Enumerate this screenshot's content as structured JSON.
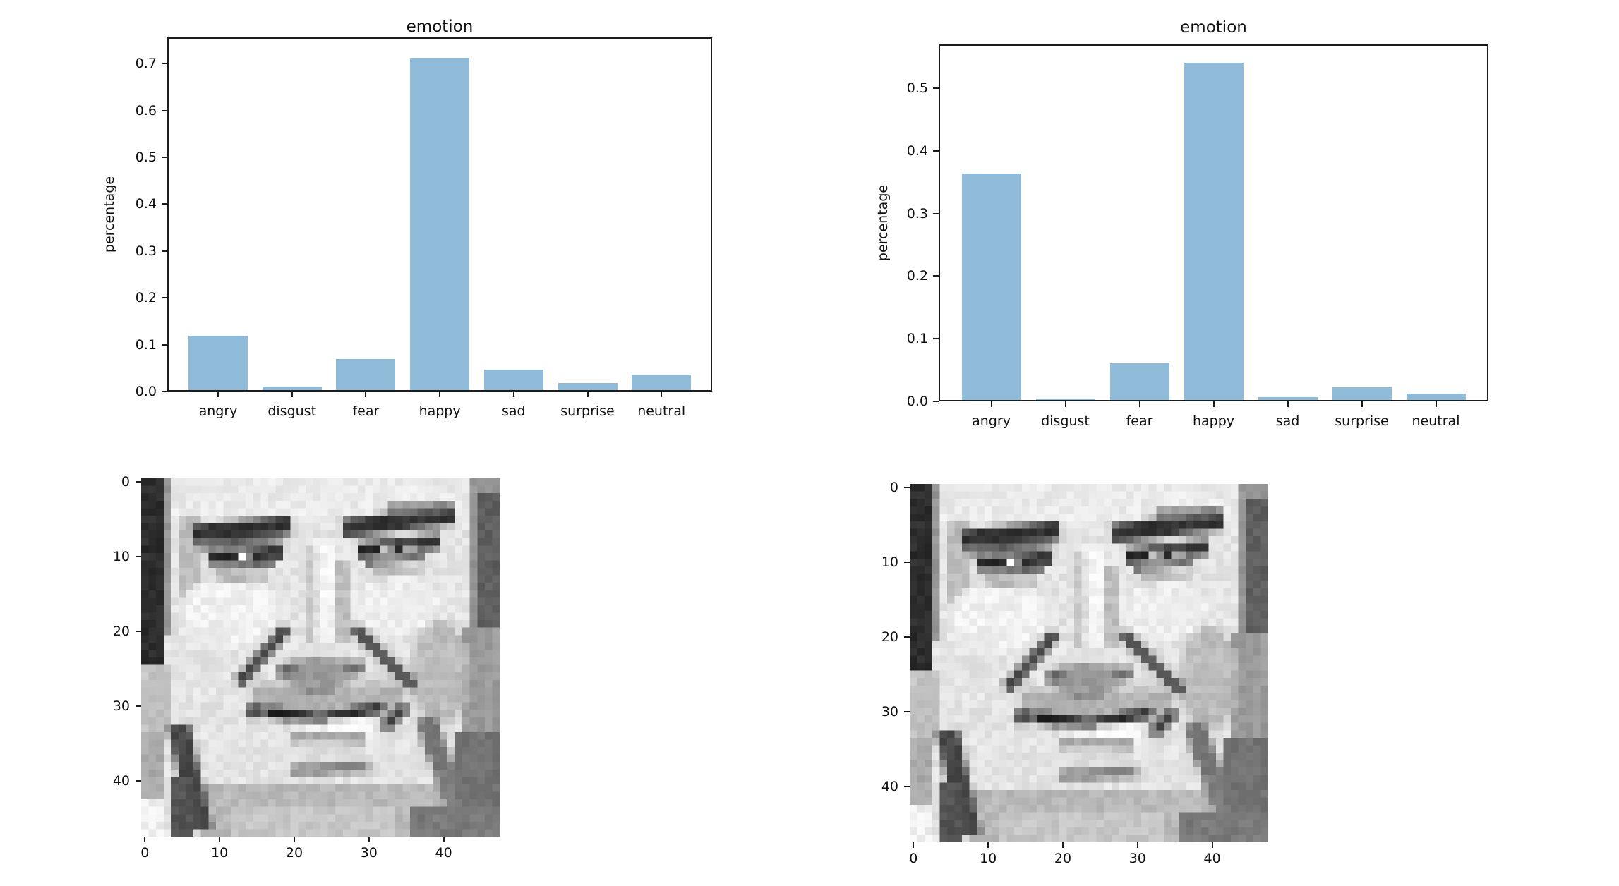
{
  "figure": {
    "background": "#ffffff",
    "bar_color": "#8fbbd9",
    "spine_color": "#1c1c1c",
    "text_color": "#111111"
  },
  "chart_data": [
    {
      "type": "bar",
      "title": "emotion",
      "xlabel": "",
      "ylabel": "percentage",
      "categories": [
        "angry",
        "disgust",
        "fear",
        "happy",
        "sad",
        "surprise",
        "neutral"
      ],
      "values": [
        0.119,
        0.01,
        0.07,
        0.712,
        0.046,
        0.018,
        0.036
      ],
      "yticks": [
        0.0,
        0.1,
        0.2,
        0.3,
        0.4,
        0.5,
        0.6,
        0.7
      ],
      "ylim": [
        0,
        0.756
      ],
      "grid": false,
      "legend": "none",
      "bar_color": "#8fbbd9"
    },
    {
      "type": "bar",
      "title": "emotion",
      "xlabel": "",
      "ylabel": "percentage",
      "categories": [
        "angry",
        "disgust",
        "fear",
        "happy",
        "sad",
        "surprise",
        "neutral"
      ],
      "values": [
        0.364,
        0.005,
        0.061,
        0.541,
        0.007,
        0.022,
        0.012
      ],
      "yticks": [
        0.0,
        0.1,
        0.2,
        0.3,
        0.4,
        0.5
      ],
      "ylim": [
        0,
        0.57
      ],
      "grid": false,
      "legend": "none",
      "bar_color": "#8fbbd9"
    }
  ],
  "face_panels": [
    {
      "content": "48x48 pixelated grayscale photo of a smiling man's face",
      "xticks": [
        0,
        10,
        20,
        30,
        40
      ],
      "yticks": [
        0,
        10,
        20,
        30,
        40
      ]
    },
    {
      "content": "48x48 pixelated grayscale photo of the same smiling man's face",
      "xticks": [
        0,
        10,
        20,
        30,
        40
      ],
      "yticks": [
        0,
        10,
        20,
        30,
        40
      ]
    }
  ],
  "face_paint": {
    "size": 48,
    "noise": 11,
    "seed": 1337,
    "ops": [
      [
        "r",
        0,
        0,
        48,
        48,
        228
      ],
      [
        "r",
        3,
        0,
        45,
        6,
        235
      ],
      [
        "r",
        44,
        0,
        4,
        48,
        150
      ],
      [
        "r",
        45,
        2,
        3,
        20,
        95
      ],
      [
        "r",
        43,
        20,
        5,
        14,
        155
      ],
      [
        "r",
        42,
        34,
        6,
        14,
        115
      ],
      [
        "r",
        0,
        0,
        3,
        25,
        45
      ],
      [
        "r",
        3,
        0,
        1,
        21,
        150
      ],
      [
        "r",
        0,
        25,
        4,
        9,
        195
      ],
      [
        "r",
        0,
        34,
        3,
        9,
        170
      ],
      [
        "r",
        0,
        43,
        3,
        5,
        240
      ],
      [
        "r",
        5,
        5,
        3,
        14,
        190
      ],
      [
        "e",
        12,
        18,
        7,
        5,
        240
      ],
      [
        "e",
        34,
        17,
        6,
        4,
        238
      ],
      [
        "e",
        40,
        26,
        4,
        7,
        188
      ],
      [
        "r",
        22,
        9,
        2,
        13,
        205
      ],
      [
        "r",
        26,
        11,
        2,
        11,
        190
      ],
      [
        "r",
        23.5,
        8,
        2.5,
        14,
        244
      ],
      [
        "l",
        7,
        7.5,
        20,
        6.3,
        2.4,
        50
      ],
      [
        "l",
        8,
        9,
        19,
        7.9,
        1.2,
        95
      ],
      [
        "l",
        27,
        6.8,
        42,
        4.8,
        2.6,
        50
      ],
      [
        "l",
        33,
        4.2,
        41,
        3.8,
        1.2,
        115
      ],
      [
        "l",
        9,
        10.6,
        19,
        9.8,
        1.8,
        40
      ],
      [
        "r",
        13,
        9.8,
        1.5,
        1.3,
        250
      ],
      [
        "l",
        10,
        12,
        18,
        11.3,
        1,
        105
      ],
      [
        "l",
        29,
        9.8,
        40,
        8.4,
        1.9,
        40
      ],
      [
        "r",
        32.3,
        9,
        1.2,
        1.2,
        250
      ],
      [
        "r",
        35.3,
        8.7,
        1.2,
        1.2,
        248
      ],
      [
        "l",
        30,
        11.4,
        38,
        10.3,
        1,
        110
      ],
      [
        "l",
        10.5,
        13.5,
        17,
        13,
        1,
        175
      ],
      [
        "l",
        30.5,
        13,
        37.5,
        12,
        1,
        175
      ],
      [
        "l",
        19.5,
        20,
        13,
        27.5,
        1.6,
        70
      ],
      [
        "l",
        28.5,
        20,
        36.5,
        28,
        1.6,
        75
      ],
      [
        "r",
        15,
        27.5,
        20,
        4,
        180
      ],
      [
        "r",
        21.5,
        27.2,
        4,
        1.6,
        130
      ],
      [
        "e",
        23.5,
        26,
        5.5,
        2,
        155
      ],
      [
        "r",
        18.5,
        25,
        2,
        1.5,
        95
      ],
      [
        "r",
        27.5,
        24.6,
        2.2,
        1.5,
        100
      ],
      [
        "l",
        16.5,
        31.3,
        24,
        32.2,
        1.4,
        35
      ],
      [
        "l",
        24,
        32.2,
        32.5,
        30.6,
        1.4,
        40
      ],
      [
        "r",
        20,
        32.6,
        11,
        1.8,
        235
      ],
      [
        "r",
        25,
        32.4,
        6,
        1.8,
        246
      ],
      [
        "l",
        32.5,
        33.5,
        35.5,
        30.5,
        1.4,
        60
      ],
      [
        "r",
        14.2,
        30.3,
        1.8,
        1.8,
        65
      ],
      [
        "l",
        20,
        34.8,
        30,
        34.9,
        1.2,
        145
      ],
      [
        "e",
        24.5,
        37.5,
        5,
        2.2,
        222
      ],
      [
        "l",
        20,
        39.2,
        30.5,
        38.6,
        1.3,
        118
      ],
      [
        "r",
        8,
        41,
        32,
        7,
        185
      ],
      [
        "r",
        12,
        44,
        22,
        4,
        198
      ],
      [
        "l",
        5,
        33,
        8,
        47,
        3,
        70
      ],
      [
        "r",
        4,
        40,
        3,
        8,
        85
      ],
      [
        "l",
        38,
        32,
        43,
        46,
        3,
        122
      ],
      [
        "r",
        36,
        44,
        12,
        4,
        122
      ]
    ]
  }
}
